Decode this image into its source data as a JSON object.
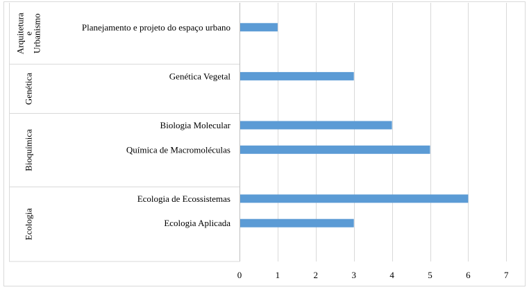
{
  "chart_data": {
    "type": "bar",
    "orientation": "horizontal",
    "title": "",
    "xlabel": "",
    "ylabel": "",
    "xlim": [
      0,
      7
    ],
    "xticks": [
      0,
      1,
      2,
      3,
      4,
      5,
      6,
      7
    ],
    "grid": "vertical",
    "legend": "none",
    "bar_color": "#5b9bd5",
    "groups": [
      {
        "name_lines": [
          "Arquitetura",
          "e",
          "Urbanismo"
        ],
        "items": [
          {
            "label": "Planejamento e projeto do espaço urbano",
            "value": 1
          }
        ]
      },
      {
        "name_lines": [
          "Genética"
        ],
        "items": [
          {
            "label": "Genética Vegetal",
            "value": 3
          }
        ]
      },
      {
        "name_lines": [
          "Bioquímica"
        ],
        "items": [
          {
            "label": "Biologia Molecular",
            "value": 4
          },
          {
            "label": "Química de Macromoléculas",
            "value": 5
          }
        ]
      },
      {
        "name_lines": [
          "Ecologia"
        ],
        "items": [
          {
            "label": "Ecologia de Ecossistemas",
            "value": 6
          },
          {
            "label": "Ecologia Aplicada",
            "value": 3
          }
        ]
      }
    ]
  }
}
